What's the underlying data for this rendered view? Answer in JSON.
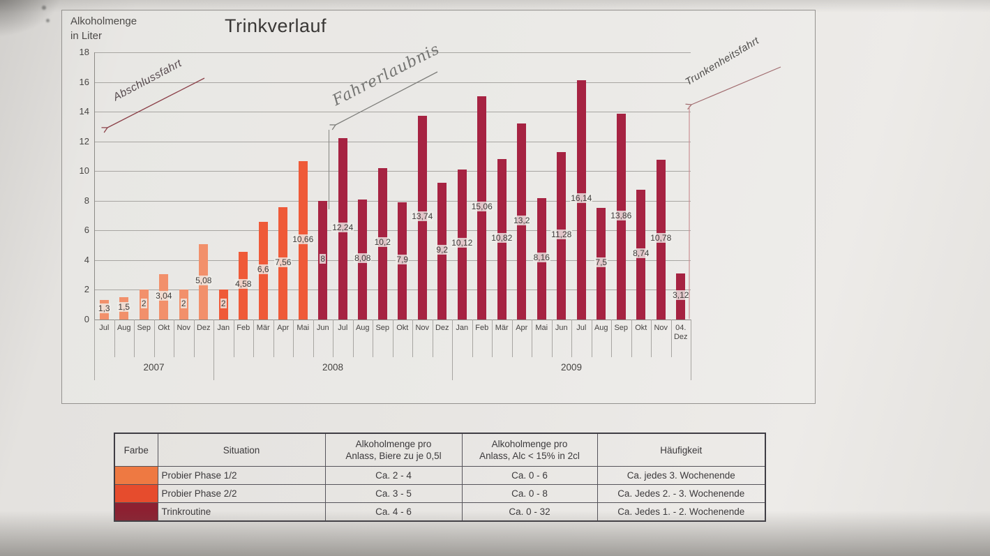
{
  "chart_data": {
    "type": "bar",
    "title": "Trinkverlauf",
    "ylabel": "Alkoholmenge in Liter",
    "ylabel_lines": [
      "Alkoholmenge",
      "in Liter"
    ],
    "xlabel": "",
    "ylim": [
      0,
      18
    ],
    "y_tick_step": 2,
    "grid": true,
    "legend_position": "none",
    "categories": [
      "Jul",
      "Aug",
      "Sep",
      "Okt",
      "Nov",
      "Dez",
      "Jan",
      "Feb",
      "Mär",
      "Apr",
      "Mai",
      "Jun",
      "Jul",
      "Aug",
      "Sep",
      "Okt",
      "Nov",
      "Dez",
      "Jan",
      "Feb",
      "Mär",
      "Apr",
      "Mai",
      "Jun",
      "Jul",
      "Aug",
      "Sep",
      "Okt",
      "Nov",
      "04. Dez"
    ],
    "values": [
      1.3,
      1.5,
      2,
      3.04,
      2,
      5.08,
      2,
      4.58,
      6.6,
      7.56,
      10.66,
      8,
      12.24,
      8.08,
      10.2,
      7.9,
      13.74,
      9.2,
      10.12,
      15.06,
      10.82,
      13.2,
      8.16,
      11.28,
      16.14,
      7.5,
      13.86,
      8.74,
      10.78,
      3.12
    ],
    "value_labels": [
      "1,3",
      "1,5",
      "2",
      "3,04",
      "2",
      "5,08",
      "2",
      "4,58",
      "6,6",
      "7,56",
      "10,66",
      "8",
      "12,24",
      "8,08",
      "10,2",
      "7,9",
      "13,74",
      "9,2",
      "10,12",
      "15,06",
      "10,82",
      "13,2",
      "8,16",
      "11,28",
      "16,14",
      "7,5",
      "13,86",
      "8,74",
      "10,78",
      "3,12"
    ],
    "year_groups": [
      {
        "label": "2007",
        "start": 0,
        "count": 6
      },
      {
        "label": "2008",
        "start": 6,
        "count": 12
      },
      {
        "label": "2009",
        "start": 18,
        "count": 12
      }
    ],
    "phase_of_bar": [
      0,
      0,
      0,
      0,
      0,
      0,
      1,
      1,
      1,
      1,
      1,
      2,
      2,
      2,
      2,
      2,
      2,
      2,
      2,
      2,
      2,
      2,
      2,
      2,
      2,
      2,
      2,
      2,
      2,
      2
    ],
    "phases": [
      {
        "name": "Probier Phase 1/2",
        "color": "#f2906b"
      },
      {
        "name": "Probier Phase 2/2",
        "color": "#ef5a38"
      },
      {
        "name": "Trinkroutine",
        "color": "#a62342"
      }
    ],
    "annotations": [
      {
        "text": "Abschlussfahrt"
      },
      {
        "text": "Fahrerlaubnis"
      },
      {
        "text": "Trunkenheitsfahrt"
      }
    ]
  },
  "table": {
    "headers": {
      "farbe": "Farbe",
      "situation": "Situation",
      "beer_line1": "Alkoholmenge pro",
      "beer_line2": "Anlass, Biere zu je 0,5l",
      "spirits_line1": "Alkoholmenge pro",
      "spirits_line2": "Anlass, Alc < 15% in 2cl",
      "haeufigkeit": "Häufigkeit"
    },
    "rows": [
      {
        "color": "#ee7942",
        "situation": "Probier Phase 1/2",
        "beer": "Ca. 2 - 4",
        "spirits": "Ca. 0 - 6",
        "frequency": "Ca. jedes 3. Wochenende"
      },
      {
        "color": "#e64c2d",
        "situation": "Probier Phase 2/2",
        "beer": "Ca. 3 - 5",
        "spirits": "Ca. 0 - 8",
        "frequency": "Ca. Jedes 2. - 3. Wochenende"
      },
      {
        "color": "#8d2031",
        "situation": "Trinkroutine",
        "beer": "Ca. 4 - 6",
        "spirits": "Ca. 0 - 32",
        "frequency": "Ca. Jedes 1. - 2. Wochenende"
      }
    ]
  }
}
